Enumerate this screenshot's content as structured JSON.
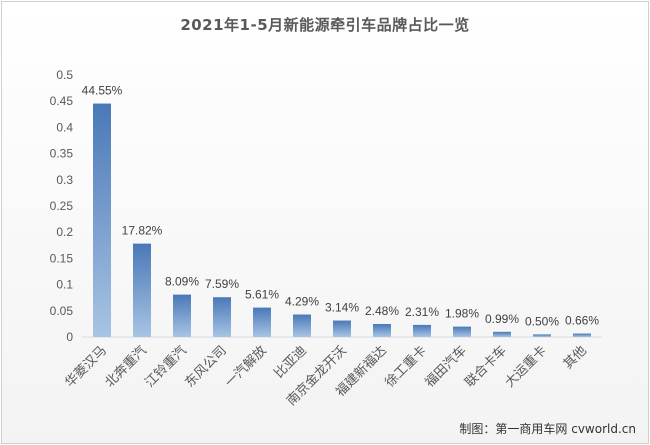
{
  "chart_data": {
    "type": "bar",
    "title": "2021年1-5月新能源牵引车品牌占比一览",
    "categories": [
      "华菱汉马",
      "北奔重汽",
      "江铃重汽",
      "东风公司",
      "一汽解放",
      "比亚迪",
      "南京金龙开沃",
      "福建新福达",
      "徐工重卡",
      "福田汽车",
      "联合卡车",
      "大运重卡",
      "其他"
    ],
    "values": [
      0.4455,
      0.1782,
      0.0809,
      0.0759,
      0.0561,
      0.0429,
      0.0314,
      0.0248,
      0.0231,
      0.0198,
      0.0099,
      0.005,
      0.0066
    ],
    "data_labels": [
      "44.55%",
      "17.82%",
      "8.09%",
      "7.59%",
      "5.61%",
      "4.29%",
      "3.14%",
      "2.48%",
      "2.31%",
      "1.98%",
      "0.99%",
      "0.50%",
      "0.66%"
    ],
    "yticks": [
      "0",
      "0.05",
      "0.1",
      "0.15",
      "0.2",
      "0.25",
      "0.3",
      "0.35",
      "0.4",
      "0.45",
      "0.5"
    ],
    "ylim": [
      0,
      0.5
    ],
    "grid": false,
    "legend": "none",
    "bar_color_top": "#4a78b8",
    "bar_color_bottom": "#a8c4e4"
  },
  "source_credit": "制图：第一商用车网 cvworld.cn"
}
